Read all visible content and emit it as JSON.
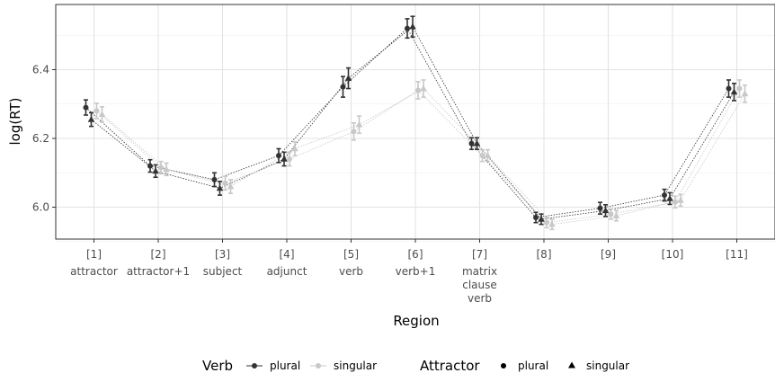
{
  "chart_data": {
    "type": "scatter",
    "xlabel": "Region",
    "ylabel": "log(RT)",
    "ylim": [
      5.9,
      6.57
    ],
    "yticks": [
      "6.0",
      "6.2",
      "6.4"
    ],
    "categories": [
      {
        "num": "[1]",
        "name": "attractor"
      },
      {
        "num": "[2]",
        "name": "attractor+1"
      },
      {
        "num": "[3]",
        "name": "subject"
      },
      {
        "num": "[4]",
        "name": "adjunct"
      },
      {
        "num": "[5]",
        "name": "verb"
      },
      {
        "num": "[6]",
        "name": "verb+1"
      },
      {
        "num": "[7]",
        "name": "matrix clause verb",
        "lines": [
          "matrix",
          "clause",
          "verb"
        ]
      },
      {
        "num": "[8]",
        "name": ""
      },
      {
        "num": "[9]",
        "name": ""
      },
      {
        "num": "[10]",
        "name": ""
      },
      {
        "num": "[11]",
        "name": ""
      }
    ],
    "grid": true,
    "legend_position": "bottom",
    "colors": {
      "plural": "#333333",
      "singular": "#c8c8c8"
    },
    "series": [
      {
        "verb": "plural",
        "attractor": "plural",
        "values": [
          6.29,
          6.12,
          6.08,
          6.15,
          6.35,
          6.52,
          6.185,
          5.97,
          5.997,
          6.035,
          6.345
        ],
        "ci": [
          0.022,
          0.018,
          0.02,
          0.02,
          0.03,
          0.028,
          0.017,
          0.015,
          0.017,
          0.017,
          0.025
        ]
      },
      {
        "verb": "plural",
        "attractor": "singular",
        "values": [
          6.255,
          6.105,
          6.055,
          6.14,
          6.375,
          6.525,
          6.185,
          5.965,
          5.99,
          6.025,
          6.335
        ],
        "ci": [
          0.02,
          0.018,
          0.02,
          0.02,
          0.03,
          0.03,
          0.017,
          0.015,
          0.017,
          0.017,
          0.025
        ]
      },
      {
        "verb": "singular",
        "attractor": "plural",
        "values": [
          6.28,
          6.115,
          6.07,
          6.14,
          6.22,
          6.34,
          6.15,
          5.955,
          5.98,
          6.015,
          6.345
        ],
        "ci": [
          0.022,
          0.018,
          0.02,
          0.02,
          0.025,
          0.025,
          0.017,
          0.015,
          0.015,
          0.017,
          0.025
        ]
      },
      {
        "verb": "singular",
        "attractor": "singular",
        "values": [
          6.27,
          6.11,
          6.06,
          6.17,
          6.24,
          6.345,
          6.15,
          5.95,
          5.975,
          6.02,
          6.33
        ],
        "ci": [
          0.022,
          0.018,
          0.02,
          0.02,
          0.025,
          0.025,
          0.017,
          0.015,
          0.015,
          0.017,
          0.025
        ]
      }
    ]
  },
  "legend": {
    "verb_title": "Verb",
    "attractor_title": "Attractor",
    "plural": "plural",
    "singular": "singular"
  }
}
